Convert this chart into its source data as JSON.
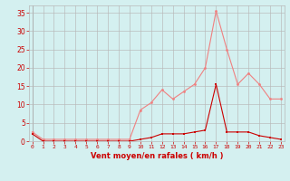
{
  "x": [
    0,
    1,
    2,
    3,
    4,
    5,
    6,
    7,
    8,
    9,
    10,
    11,
    12,
    13,
    14,
    15,
    16,
    17,
    18,
    19,
    20,
    21,
    22,
    23
  ],
  "rafales": [
    2.5,
    0.5,
    0.5,
    0.5,
    0.5,
    0.5,
    0.5,
    0.5,
    0.5,
    0.5,
    8.5,
    10.5,
    14.0,
    11.5,
    13.5,
    15.5,
    20.0,
    35.5,
    25.0,
    15.5,
    18.5,
    15.5,
    11.5,
    11.5
  ],
  "moyen": [
    2.0,
    0.0,
    0.0,
    0.0,
    0.0,
    0.0,
    0.0,
    0.0,
    0.0,
    0.0,
    0.5,
    1.0,
    2.0,
    2.0,
    2.0,
    2.5,
    3.0,
    15.5,
    2.5,
    2.5,
    2.5,
    1.5,
    1.0,
    0.5
  ],
  "color_rafales": "#f08080",
  "color_moyen": "#cc0000",
  "bg_color": "#d4f0f0",
  "grid_color": "#b8b8b8",
  "xlabel": "Vent moyen/en rafales ( km/h )",
  "ylim": [
    0,
    37
  ],
  "yticks": [
    0,
    5,
    10,
    15,
    20,
    25,
    30,
    35
  ],
  "tick_color": "#cc0000",
  "xlabel_color": "#cc0000"
}
